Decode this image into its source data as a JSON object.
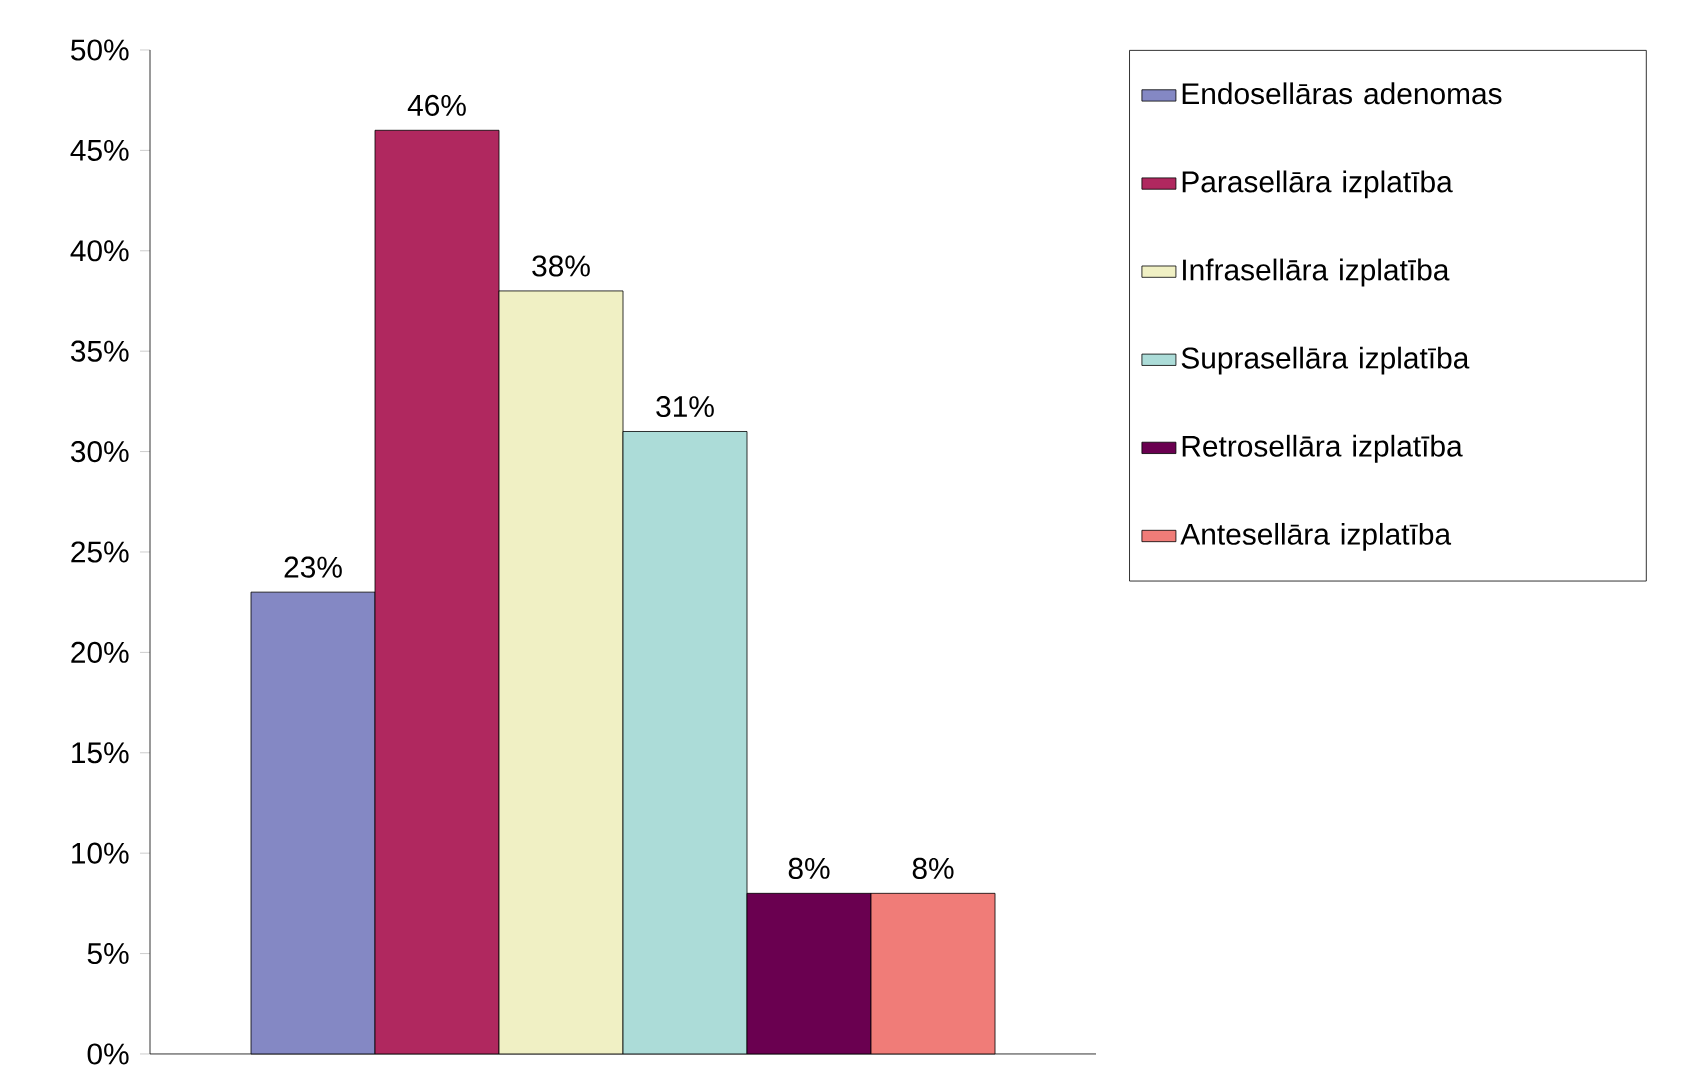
{
  "chart_data": {
    "type": "bar",
    "categories": [
      null
    ],
    "series": [
      {
        "name": "Endosellāras adenomas",
        "color": "#8488c4",
        "values": [
          23
        ],
        "value_labels": [
          "23%"
        ]
      },
      {
        "name": "Parasellāra izplatība",
        "color": "#b0285f",
        "values": [
          46
        ],
        "value_labels": [
          "46%"
        ]
      },
      {
        "name": "Infrasellāra izplatība",
        "color": "#f0f0c4",
        "values": [
          38
        ],
        "value_labels": [
          "38%"
        ]
      },
      {
        "name": "Suprasellāra izplatība",
        "color": "#acdcd8",
        "values": [
          31
        ],
        "value_labels": [
          "31%"
        ]
      },
      {
        "name": "Retrosellāra izplatība",
        "color": "#6a0050",
        "values": [
          8
        ],
        "value_labels": [
          "8%"
        ]
      },
      {
        "name": "Antesellāra izplatība",
        "color": "#f07c78",
        "values": [
          8
        ],
        "value_labels": [
          "8%"
        ]
      }
    ],
    "ylim": [
      0,
      50
    ],
    "yticks": [
      {
        "value": 0,
        "label": "0%"
      },
      {
        "value": 5,
        "label": "5%"
      },
      {
        "value": 10,
        "label": "10%"
      },
      {
        "value": 15,
        "label": "15%"
      },
      {
        "value": 20,
        "label": "20%"
      },
      {
        "value": 25,
        "label": "25%"
      },
      {
        "value": 30,
        "label": "30%"
      },
      {
        "value": 35,
        "label": "35%"
      },
      {
        "value": 40,
        "label": "40%"
      },
      {
        "value": 45,
        "label": "45%"
      },
      {
        "value": 50,
        "label": "50%"
      }
    ],
    "legend": "right",
    "grid": false
  }
}
